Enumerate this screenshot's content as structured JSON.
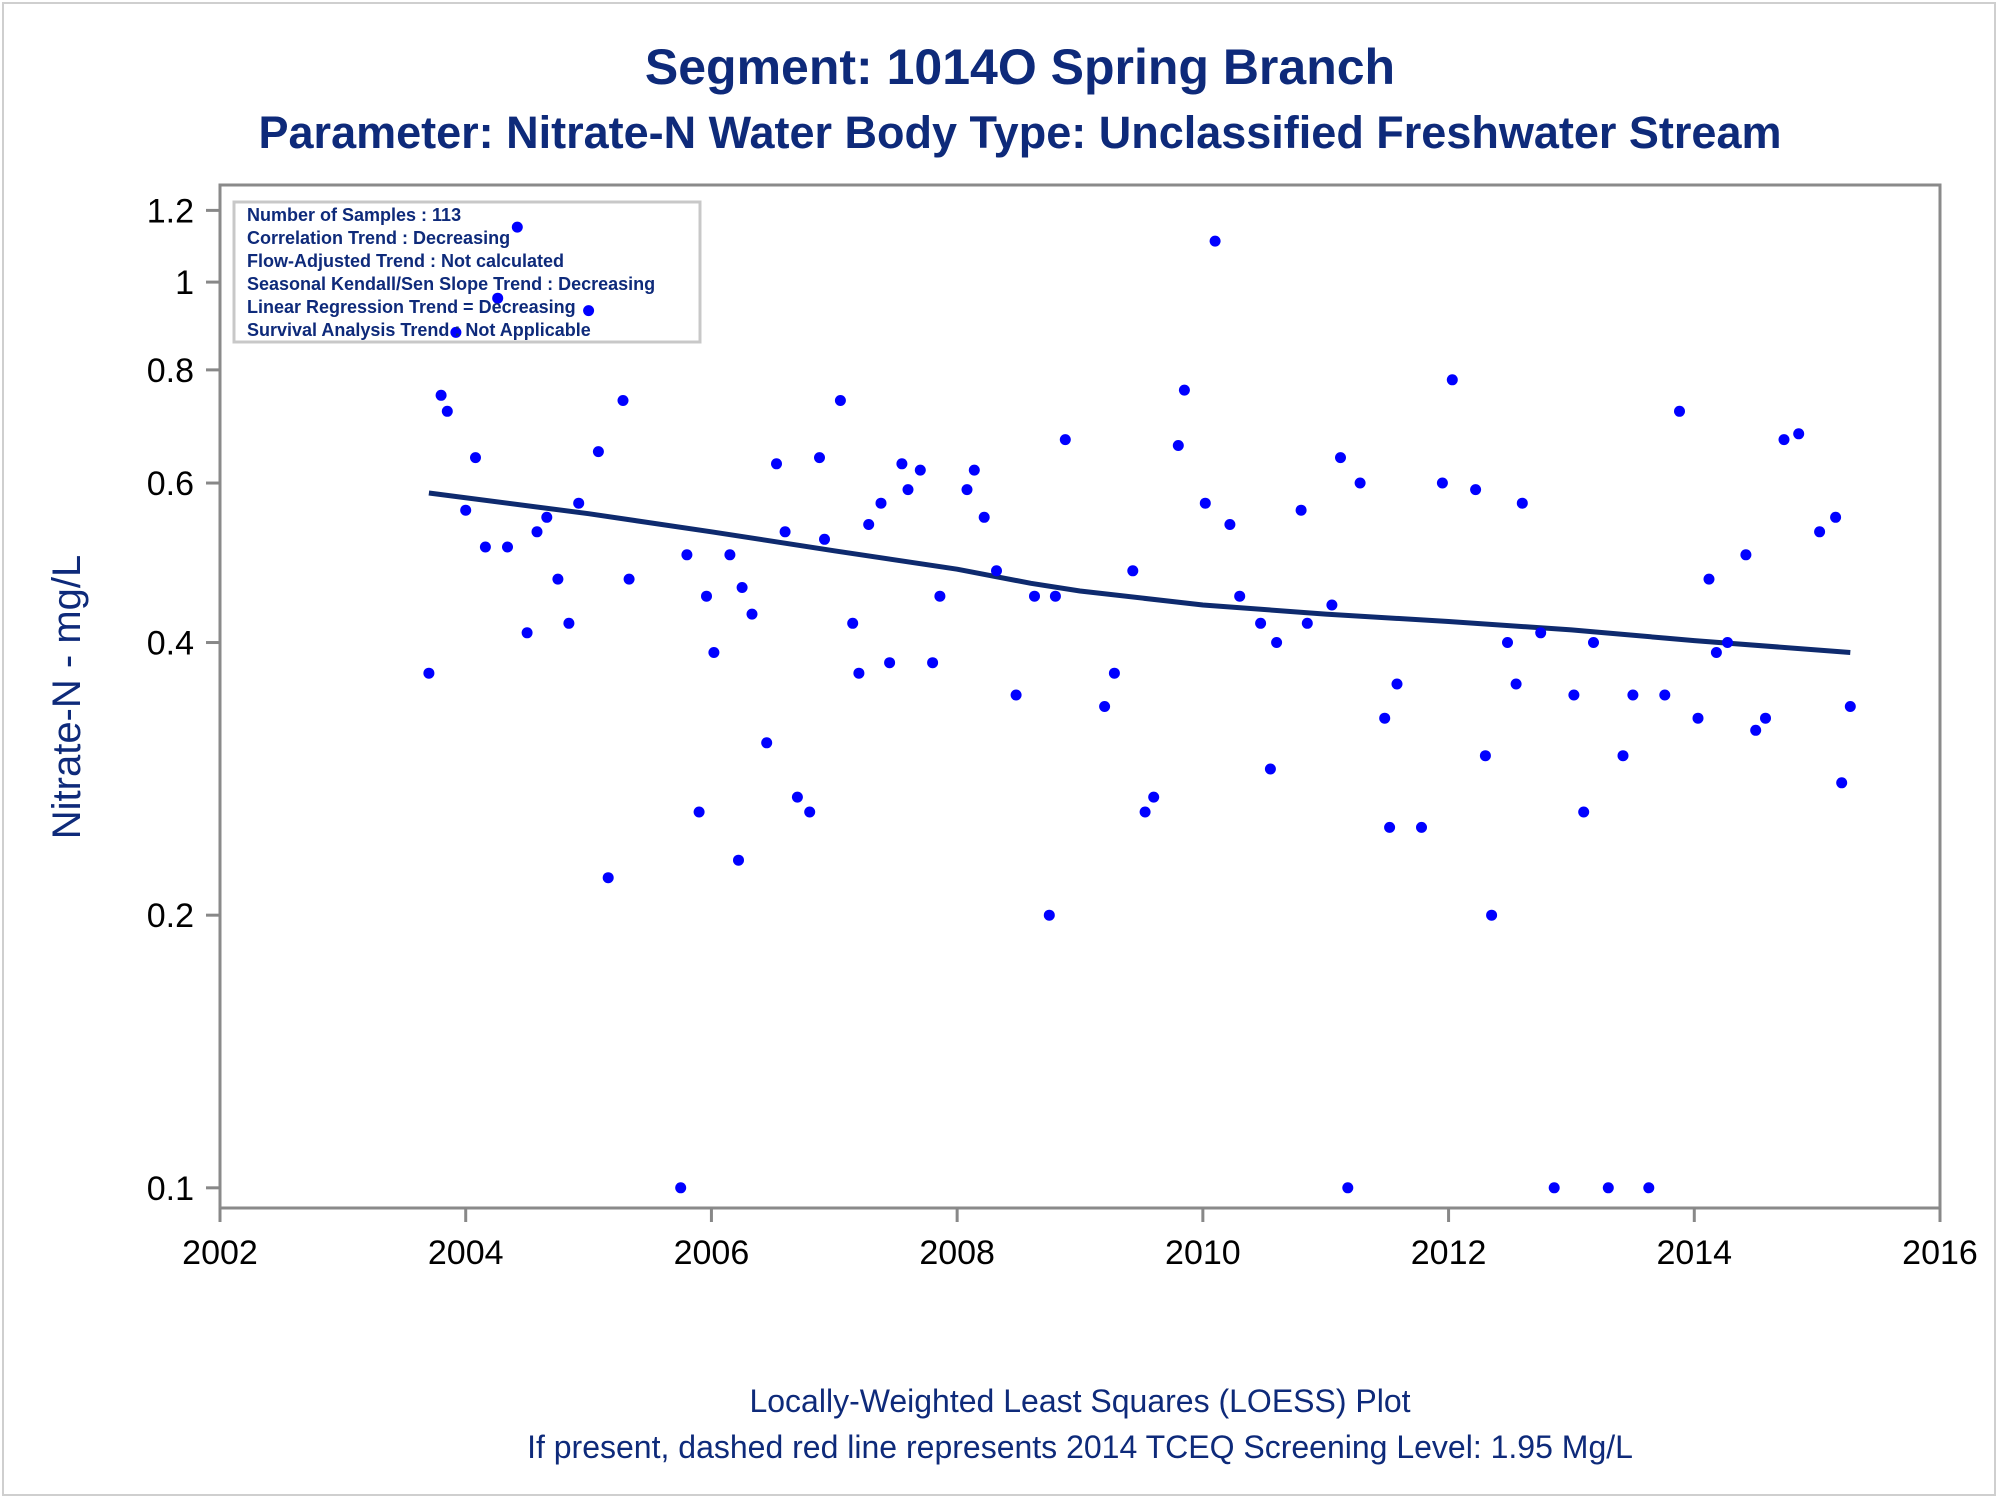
{
  "chart_data": {
    "type": "scatter",
    "title": "Segment: 1014O  Spring Branch",
    "subtitle": "Parameter: Nitrate-N   Water Body Type: Unclassified Freshwater Stream",
    "xlabel": "",
    "ylabel": "Nitrate-N - mg/L",
    "y_scale": "log",
    "xlim": [
      2002,
      2016
    ],
    "ylim": [
      0.095,
      1.28
    ],
    "x_ticks": [
      "2002",
      "2004",
      "2006",
      "2008",
      "2010",
      "2012",
      "2014",
      "2016"
    ],
    "y_ticks": [
      "0.1",
      "0.2",
      "0.4",
      "0.6",
      "0.8",
      "1",
      "1.2"
    ],
    "grid": false,
    "colors": {
      "points": "#0000ff",
      "trend_line": "#0e2a6e",
      "text": "#0e2a7a",
      "axis": "#888888"
    },
    "stats_box": [
      "Number of Samples : 113",
      "Correlation Trend : Decreasing",
      "Flow-Adjusted Trend : Not calculated",
      "Seasonal Kendall/Sen Slope Trend : Decreasing",
      "Linear Regression Trend = Decreasing",
      "Survival Analysis Trend : Not Applicable"
    ],
    "footnotes": [
      "Locally-Weighted Least Squares (LOESS) Plot",
      "If present, dashed red line represents 2014 TCEQ Screening Level: 1.95 Mg/L"
    ],
    "series": [
      {
        "type": "scatter",
        "points": [
          [
            2003.7,
            0.37
          ],
          [
            2003.8,
            0.75
          ],
          [
            2003.85,
            0.72
          ],
          [
            2003.92,
            0.88
          ],
          [
            2004.0,
            0.56
          ],
          [
            2004.08,
            0.64
          ],
          [
            2004.16,
            0.51
          ],
          [
            2004.26,
            0.96
          ],
          [
            2004.34,
            0.51
          ],
          [
            2004.42,
            1.15
          ],
          [
            2004.5,
            0.41
          ],
          [
            2004.58,
            0.53
          ],
          [
            2004.66,
            0.55
          ],
          [
            2004.75,
            0.47
          ],
          [
            2004.84,
            0.42
          ],
          [
            2004.92,
            0.57
          ],
          [
            2005.0,
            0.93
          ],
          [
            2005.08,
            0.65
          ],
          [
            2005.16,
            0.22
          ],
          [
            2005.28,
            0.74
          ],
          [
            2005.33,
            0.47
          ],
          [
            2005.75,
            0.1
          ],
          [
            2005.8,
            0.5
          ],
          [
            2005.9,
            0.26
          ],
          [
            2005.96,
            0.45
          ],
          [
            2006.02,
            0.39
          ],
          [
            2006.15,
            0.5
          ],
          [
            2006.22,
            0.23
          ],
          [
            2006.25,
            0.46
          ],
          [
            2006.33,
            0.43
          ],
          [
            2006.45,
            0.31
          ],
          [
            2006.53,
            0.63
          ],
          [
            2006.6,
            0.53
          ],
          [
            2006.7,
            0.27
          ],
          [
            2006.8,
            0.26
          ],
          [
            2006.88,
            0.64
          ],
          [
            2006.92,
            0.52
          ],
          [
            2007.05,
            0.74
          ],
          [
            2007.15,
            0.42
          ],
          [
            2007.2,
            0.37
          ],
          [
            2007.28,
            0.54
          ],
          [
            2007.38,
            0.57
          ],
          [
            2007.45,
            0.38
          ],
          [
            2007.55,
            0.63
          ],
          [
            2007.6,
            0.59
          ],
          [
            2007.7,
            0.62
          ],
          [
            2007.8,
            0.38
          ],
          [
            2007.86,
            0.45
          ],
          [
            2008.08,
            0.59
          ],
          [
            2008.14,
            0.62
          ],
          [
            2008.22,
            0.55
          ],
          [
            2008.32,
            0.48
          ],
          [
            2008.48,
            0.35
          ],
          [
            2008.63,
            0.45
          ],
          [
            2008.75,
            0.2
          ],
          [
            2008.8,
            0.45
          ],
          [
            2008.88,
            0.67
          ],
          [
            2009.2,
            0.34
          ],
          [
            2009.28,
            0.37
          ],
          [
            2009.43,
            0.48
          ],
          [
            2009.53,
            0.26
          ],
          [
            2009.6,
            0.27
          ],
          [
            2009.8,
            0.66
          ],
          [
            2009.85,
            0.76
          ],
          [
            2010.02,
            0.57
          ],
          [
            2010.1,
            1.11
          ],
          [
            2010.22,
            0.54
          ],
          [
            2010.3,
            0.45
          ],
          [
            2010.47,
            0.42
          ],
          [
            2010.55,
            0.29
          ],
          [
            2010.6,
            0.4
          ],
          [
            2010.8,
            0.56
          ],
          [
            2010.85,
            0.42
          ],
          [
            2011.05,
            0.44
          ],
          [
            2011.12,
            0.64
          ],
          [
            2011.18,
            0.1
          ],
          [
            2011.28,
            0.6
          ],
          [
            2011.48,
            0.33
          ],
          [
            2011.52,
            0.25
          ],
          [
            2011.58,
            0.36
          ],
          [
            2011.78,
            0.25
          ],
          [
            2011.95,
            0.6
          ],
          [
            2012.03,
            0.78
          ],
          [
            2012.22,
            0.59
          ],
          [
            2012.3,
            0.3
          ],
          [
            2012.35,
            0.2
          ],
          [
            2012.48,
            0.4
          ],
          [
            2012.55,
            0.36
          ],
          [
            2012.6,
            0.57
          ],
          [
            2012.75,
            0.41
          ],
          [
            2012.86,
            0.1
          ],
          [
            2013.02,
            0.35
          ],
          [
            2013.1,
            0.26
          ],
          [
            2013.18,
            0.4
          ],
          [
            2013.3,
            0.1
          ],
          [
            2013.42,
            0.3
          ],
          [
            2013.5,
            0.35
          ],
          [
            2013.63,
            0.1
          ],
          [
            2013.76,
            0.35
          ],
          [
            2013.88,
            0.72
          ],
          [
            2014.03,
            0.33
          ],
          [
            2014.12,
            0.47
          ],
          [
            2014.18,
            0.39
          ],
          [
            2014.27,
            0.4
          ],
          [
            2014.42,
            0.5
          ],
          [
            2014.5,
            0.32
          ],
          [
            2014.58,
            0.33
          ],
          [
            2014.73,
            0.67
          ],
          [
            2014.85,
            0.68
          ],
          [
            2015.02,
            0.53
          ],
          [
            2015.15,
            0.55
          ],
          [
            2015.2,
            0.28
          ],
          [
            2015.27,
            0.34
          ]
        ]
      },
      {
        "type": "line",
        "points": [
          [
            2003.7,
            0.585
          ],
          [
            2005.0,
            0.555
          ],
          [
            2006.0,
            0.53
          ],
          [
            2007.0,
            0.505
          ],
          [
            2008.0,
            0.482
          ],
          [
            2008.6,
            0.465
          ],
          [
            2009.0,
            0.456
          ],
          [
            2010.0,
            0.44
          ],
          [
            2011.0,
            0.43
          ],
          [
            2012.0,
            0.422
          ],
          [
            2013.0,
            0.413
          ],
          [
            2014.0,
            0.402
          ],
          [
            2015.27,
            0.39
          ]
        ]
      }
    ]
  }
}
